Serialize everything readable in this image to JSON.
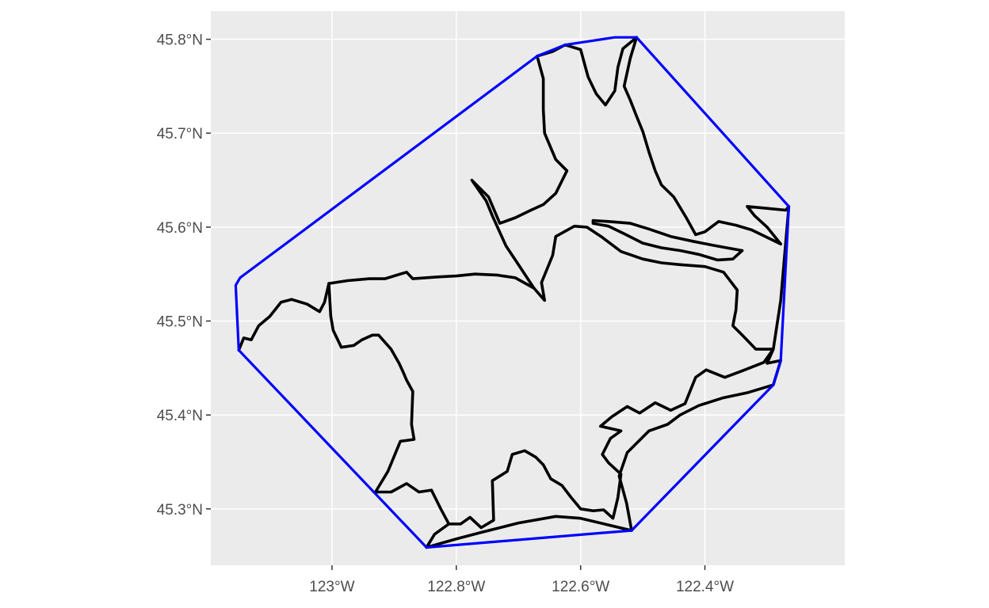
{
  "chart_data": {
    "type": "map",
    "x_axis": {
      "ticks": [
        -123.0,
        -122.8,
        -122.6,
        -122.4
      ],
      "tick_labels": [
        "123°W",
        "122.8°W",
        "122.6°W",
        "122.4°W"
      ],
      "range": [
        -123.195,
        -122.175
      ]
    },
    "y_axis": {
      "ticks": [
        45.3,
        45.4,
        45.5,
        45.6,
        45.7,
        45.8
      ],
      "tick_labels": [
        "45.3°N",
        "45.4°N",
        "45.5°N",
        "45.6°N",
        "45.7°N",
        "45.8°N"
      ],
      "range": [
        45.24,
        45.83
      ]
    },
    "grid": true,
    "panel_background": "#ebebeb",
    "grid_color": "#ffffff",
    "layers": [
      {
        "name": "convex hull",
        "color": "#0000ff",
        "closed": true,
        "points": [
          [
            -122.848,
            45.259
          ],
          [
            -123.15,
            45.469
          ],
          [
            -123.155,
            45.538
          ],
          [
            -123.148,
            45.546
          ],
          [
            -122.67,
            45.782
          ],
          [
            -122.625,
            45.794
          ],
          [
            -122.545,
            45.802
          ],
          [
            -122.51,
            45.802
          ],
          [
            -122.265,
            45.622
          ],
          [
            -122.278,
            45.458
          ],
          [
            -122.29,
            45.432
          ],
          [
            -122.518,
            45.277
          ]
        ]
      },
      {
        "name": "boundary",
        "color": "#000000",
        "closed": true,
        "points": [
          [
            -122.848,
            45.259
          ],
          [
            -122.835,
            45.273
          ],
          [
            -122.812,
            45.284
          ],
          [
            -122.793,
            45.284
          ],
          [
            -122.778,
            45.291
          ],
          [
            -122.76,
            45.28
          ],
          [
            -122.74,
            45.288
          ],
          [
            -122.742,
            45.33
          ],
          [
            -122.718,
            45.34
          ],
          [
            -122.71,
            45.358
          ],
          [
            -122.69,
            45.362
          ],
          [
            -122.672,
            45.355
          ],
          [
            -122.66,
            45.347
          ],
          [
            -122.648,
            45.332
          ],
          [
            -122.63,
            45.325
          ],
          [
            -122.615,
            45.312
          ],
          [
            -122.6,
            45.3
          ],
          [
            -122.58,
            45.298
          ],
          [
            -122.563,
            45.299
          ],
          [
            -122.548,
            45.29
          ],
          [
            -122.54,
            45.312
          ],
          [
            -122.535,
            45.337
          ],
          [
            -122.555,
            45.349
          ],
          [
            -122.565,
            45.358
          ],
          [
            -122.552,
            45.375
          ],
          [
            -122.535,
            45.383
          ],
          [
            -122.568,
            45.388
          ],
          [
            -122.55,
            45.398
          ],
          [
            -122.525,
            45.409
          ],
          [
            -122.505,
            45.402
          ],
          [
            -122.48,
            45.413
          ],
          [
            -122.455,
            45.405
          ],
          [
            -122.432,
            45.412
          ],
          [
            -122.415,
            45.44
          ],
          [
            -122.398,
            45.448
          ],
          [
            -122.368,
            45.44
          ],
          [
            -122.34,
            45.447
          ],
          [
            -122.305,
            45.456
          ],
          [
            -122.29,
            45.47
          ],
          [
            -122.318,
            45.47
          ],
          [
            -122.34,
            45.485
          ],
          [
            -122.355,
            45.495
          ],
          [
            -122.35,
            45.512
          ],
          [
            -122.348,
            45.533
          ],
          [
            -122.37,
            45.552
          ],
          [
            -122.4,
            45.558
          ],
          [
            -122.44,
            45.56
          ],
          [
            -122.47,
            45.562
          ],
          [
            -122.5,
            45.566
          ],
          [
            -122.535,
            45.574
          ],
          [
            -122.565,
            45.589
          ],
          [
            -122.59,
            45.6
          ],
          [
            -122.61,
            45.601
          ],
          [
            -122.64,
            45.59
          ],
          [
            -122.645,
            45.57
          ],
          [
            -122.663,
            45.541
          ],
          [
            -122.658,
            45.522
          ],
          [
            -122.675,
            45.535
          ],
          [
            -122.7,
            45.56
          ],
          [
            -122.72,
            45.58
          ],
          [
            -122.742,
            45.612
          ],
          [
            -122.752,
            45.628
          ],
          [
            -122.775,
            45.65
          ],
          [
            -122.748,
            45.632
          ],
          [
            -122.73,
            45.604
          ],
          [
            -122.705,
            45.61
          ],
          [
            -122.68,
            45.618
          ],
          [
            -122.66,
            45.624
          ],
          [
            -122.64,
            45.636
          ],
          [
            -122.622,
            45.66
          ],
          [
            -122.64,
            45.672
          ],
          [
            -122.658,
            45.7
          ],
          [
            -122.66,
            45.725
          ],
          [
            -122.66,
            45.758
          ],
          [
            -122.67,
            45.782
          ],
          [
            -122.645,
            45.787
          ],
          [
            -122.625,
            45.794
          ],
          [
            -122.6,
            45.789
          ],
          [
            -122.588,
            45.76
          ],
          [
            -122.575,
            45.742
          ],
          [
            -122.56,
            45.73
          ],
          [
            -122.545,
            45.745
          ],
          [
            -122.54,
            45.77
          ],
          [
            -122.532,
            45.79
          ],
          [
            -122.51,
            45.802
          ],
          [
            -122.52,
            45.78
          ],
          [
            -122.53,
            45.75
          ],
          [
            -122.52,
            45.735
          ],
          [
            -122.51,
            45.718
          ],
          [
            -122.5,
            45.702
          ],
          [
            -122.49,
            45.68
          ],
          [
            -122.48,
            45.66
          ],
          [
            -122.47,
            45.645
          ],
          [
            -122.45,
            45.632
          ],
          [
            -122.43,
            45.61
          ],
          [
            -122.415,
            45.592
          ],
          [
            -122.4,
            45.595
          ],
          [
            -122.378,
            45.606
          ],
          [
            -122.35,
            45.602
          ],
          [
            -122.325,
            45.597
          ],
          [
            -122.3,
            45.589
          ],
          [
            -122.278,
            45.582
          ],
          [
            -122.3,
            45.6
          ],
          [
            -122.32,
            45.612
          ],
          [
            -122.332,
            45.622
          ],
          [
            -122.3,
            45.62
          ],
          [
            -122.27,
            45.618
          ],
          [
            -122.265,
            45.622
          ],
          [
            -122.278,
            45.522
          ],
          [
            -122.29,
            45.47
          ],
          [
            -122.3,
            45.455
          ],
          [
            -122.278,
            45.458
          ],
          [
            -122.29,
            45.432
          ],
          [
            -122.33,
            45.424
          ],
          [
            -122.372,
            45.418
          ],
          [
            -122.41,
            45.41
          ],
          [
            -122.44,
            45.4
          ],
          [
            -122.46,
            45.39
          ],
          [
            -122.49,
            45.383
          ],
          [
            -122.525,
            45.36
          ],
          [
            -122.538,
            45.335
          ],
          [
            -122.526,
            45.306
          ],
          [
            -122.518,
            45.277
          ],
          [
            -122.6,
            45.29
          ],
          [
            -122.64,
            45.292
          ],
          [
            -122.7,
            45.285
          ],
          [
            -122.76,
            45.275
          ],
          [
            -122.8,
            45.268
          ],
          [
            -122.848,
            45.259
          ]
        ]
      },
      {
        "name": "river",
        "color": "#000000",
        "closed": true,
        "points": [
          [
            -122.58,
            45.604
          ],
          [
            -122.555,
            45.601
          ],
          [
            -122.53,
            45.593
          ],
          [
            -122.5,
            45.583
          ],
          [
            -122.47,
            45.578
          ],
          [
            -122.44,
            45.575
          ],
          [
            -122.41,
            45.571
          ],
          [
            -122.38,
            45.565
          ],
          [
            -122.355,
            45.566
          ],
          [
            -122.34,
            45.575
          ],
          [
            -122.365,
            45.578
          ],
          [
            -122.39,
            45.581
          ],
          [
            -122.42,
            45.585
          ],
          [
            -122.455,
            45.59
          ],
          [
            -122.49,
            45.598
          ],
          [
            -122.52,
            45.604
          ],
          [
            -122.555,
            45.606
          ],
          [
            -122.58,
            45.607
          ],
          [
            -122.58,
            45.604
          ]
        ]
      },
      {
        "name": "western edge",
        "color": "#000000",
        "closed": false,
        "points": [
          [
            -123.15,
            45.469
          ],
          [
            -123.142,
            45.482
          ],
          [
            -123.13,
            45.48
          ],
          [
            -123.118,
            45.495
          ],
          [
            -123.1,
            45.505
          ],
          [
            -123.082,
            45.52
          ],
          [
            -123.065,
            45.523
          ],
          [
            -123.04,
            45.518
          ],
          [
            -123.02,
            45.51
          ],
          [
            -123.012,
            45.52
          ],
          [
            -123.005,
            45.54
          ],
          [
            -122.975,
            45.543
          ],
          [
            -122.94,
            45.545
          ],
          [
            -122.915,
            45.545
          ],
          [
            -122.88,
            45.552
          ],
          [
            -122.87,
            45.545
          ],
          [
            -122.83,
            45.547
          ],
          [
            -122.8,
            45.548
          ],
          [
            -122.77,
            45.55
          ],
          [
            -122.735,
            45.549
          ],
          [
            -122.705,
            45.546
          ],
          [
            -122.675,
            45.535
          ]
        ]
      },
      {
        "name": "southwest edge",
        "color": "#000000",
        "closed": false,
        "points": [
          [
            -123.005,
            45.54
          ],
          [
            -123.002,
            45.505
          ],
          [
            -122.998,
            45.49
          ],
          [
            -122.985,
            45.472
          ],
          [
            -122.965,
            45.474
          ],
          [
            -122.952,
            45.48
          ],
          [
            -122.935,
            45.485
          ],
          [
            -122.925,
            45.485
          ],
          [
            -122.905,
            45.47
          ],
          [
            -122.892,
            45.455
          ],
          [
            -122.885,
            45.445
          ],
          [
            -122.88,
            45.437
          ],
          [
            -122.87,
            45.425
          ],
          [
            -122.872,
            45.39
          ],
          [
            -122.868,
            45.374
          ],
          [
            -122.89,
            45.372
          ],
          [
            -122.91,
            45.34
          ],
          [
            -122.93,
            45.318
          ],
          [
            -122.905,
            45.318
          ],
          [
            -122.88,
            45.327
          ],
          [
            -122.86,
            45.318
          ],
          [
            -122.84,
            45.32
          ],
          [
            -122.825,
            45.3
          ],
          [
            -122.812,
            45.284
          ]
        ]
      }
    ]
  }
}
